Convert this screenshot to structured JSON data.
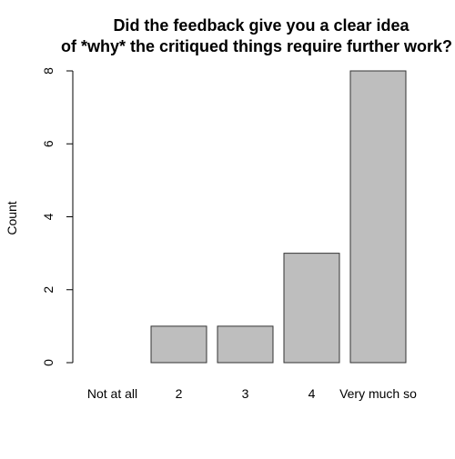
{
  "chart_data": {
    "type": "bar",
    "title_lines": [
      "Did the feedback give you a clear idea",
      "of *why* the critiqued things require further work?"
    ],
    "xlabel": "",
    "ylabel": "Count",
    "categories": [
      "Not at all",
      "2",
      "3",
      "4",
      "Very much so"
    ],
    "values": [
      0,
      1,
      1,
      3,
      8
    ],
    "ylim": [
      0,
      8
    ],
    "yticks": [
      0,
      2,
      4,
      6,
      8
    ],
    "grid": false,
    "legend": "none",
    "bar_color": "#bebebe",
    "bar_border_color": "#333333"
  }
}
